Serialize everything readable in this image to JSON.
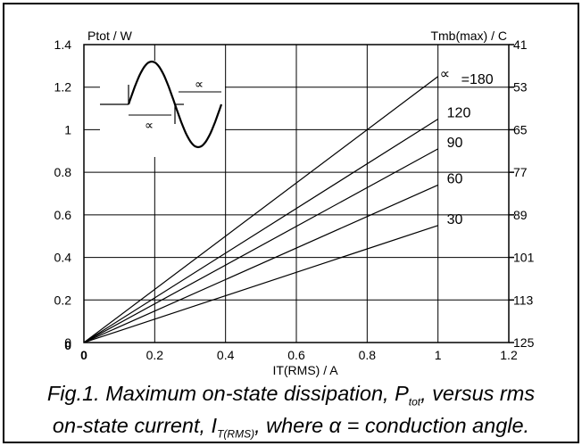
{
  "chart_data": {
    "type": "line",
    "xlabel": "IT(RMS) / A",
    "ylabel": "Ptot / W",
    "y2label": "Tmb(max) / C",
    "xlim": [
      0,
      1.2
    ],
    "ylim": [
      0,
      1.4
    ],
    "xticks": [
      "0",
      "0.2",
      "0.4",
      "0.6",
      "0.8",
      "1",
      "1.2"
    ],
    "yticks": [
      "0",
      "0.2",
      "0.4",
      "0.6",
      "0.8",
      "1",
      "1.2",
      "1.4"
    ],
    "y2ticks": [
      "125",
      "113",
      "101",
      "89",
      "77",
      "65",
      "53",
      "41"
    ],
    "y_zero_label": "0",
    "grid": true,
    "alpha_symbol": "∝",
    "series": [
      {
        "name": "=180",
        "x": [
          0,
          1.0
        ],
        "y": [
          0,
          1.25
        ]
      },
      {
        "name": "120",
        "x": [
          0,
          1.0
        ],
        "y": [
          0,
          1.05
        ]
      },
      {
        "name": "90",
        "x": [
          0,
          1.0
        ],
        "y": [
          0,
          0.91
        ]
      },
      {
        "name": "60",
        "x": [
          0,
          1.0
        ],
        "y": [
          0,
          0.74
        ]
      },
      {
        "name": "30",
        "x": [
          0,
          1.0
        ],
        "y": [
          0,
          0.55
        ]
      }
    ],
    "inset": {
      "alpha_label_top": "∝",
      "alpha_label_bottom": "∝"
    }
  },
  "caption": {
    "line1_a": "Fig.1.  Maximum on-state dissipation, P",
    "line1_sub": "tot",
    "line1_b": ", versus rms",
    "line2_a": "on-state current, I",
    "line2_sub": "T(RMS)",
    "line2_b": ", where α = conduction angle."
  }
}
